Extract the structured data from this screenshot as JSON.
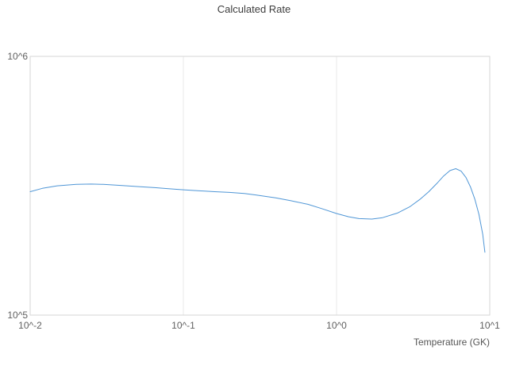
{
  "style": {
    "background": "#ffffff",
    "grid_color": "#e8e8e8",
    "axis_color": "#d6d6d6",
    "title_color": "#3d3d3d",
    "tick_color": "#606060",
    "label_color": "#555555"
  },
  "chart_data": {
    "type": "line",
    "title": "Calculated Rate",
    "xlabel": "Temperature (GK)",
    "ylabel": "",
    "xscale": "log",
    "yscale": "log",
    "xlim": [
      0.01,
      10
    ],
    "ylim": [
      100000,
      1000000
    ],
    "x_tick_labels": [
      "10^-2",
      "10^-1",
      "10^0",
      "10^1"
    ],
    "x_tick_values": [
      0.01,
      0.1,
      1,
      10
    ],
    "y_tick_labels": [
      "10^6",
      "10^5"
    ],
    "y_tick_values": [
      1000000,
      100000
    ],
    "grid": true,
    "legend": false,
    "series": [
      {
        "name": "calculated-rate",
        "color": "#4f96d6",
        "line_width": 1,
        "x": [
          0.01,
          0.012,
          0.015,
          0.02,
          0.025,
          0.03,
          0.04,
          0.05,
          0.065,
          0.08,
          0.1,
          0.13,
          0.16,
          0.2,
          0.25,
          0.3,
          0.4,
          0.5,
          0.65,
          0.8,
          1.0,
          1.2,
          1.4,
          1.7,
          2.0,
          2.5,
          3.0,
          3.5,
          4.0,
          4.5,
          5.0,
          5.5,
          6.0,
          6.5,
          7.0,
          7.5,
          8.0,
          8.5,
          9.0,
          9.3
        ],
        "y": [
          300000,
          309000,
          316000,
          320000,
          321000,
          320000,
          317000,
          314000,
          311000,
          308000,
          305000,
          302000,
          300000,
          298000,
          295000,
          291000,
          284000,
          277000,
          268000,
          258000,
          247000,
          240000,
          236000,
          235000,
          238000,
          248000,
          262000,
          280000,
          300000,
          322000,
          345000,
          362000,
          368000,
          360000,
          340000,
          312000,
          280000,
          245000,
          205000,
          175000
        ]
      }
    ]
  }
}
